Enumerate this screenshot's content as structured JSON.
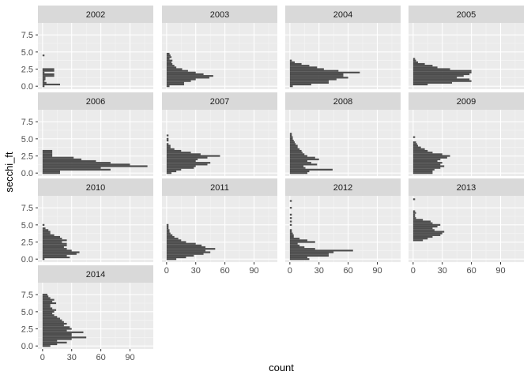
{
  "chart_data": {
    "type": "bar",
    "orientation": "horizontal",
    "xlabel": "count",
    "ylabel": "secchi_ft",
    "xlim": [
      -4.75,
      114
    ],
    "ylim": [
      -0.44,
      9.25
    ],
    "x_ticks": [
      "0",
      "30",
      "60",
      "90"
    ],
    "y_ticks": [
      "0.0",
      "2.5",
      "5.0",
      "7.5"
    ],
    "bin_width": 0.25,
    "grid": true,
    "legend": "none",
    "colors": {
      "bar": "#4d4d4d",
      "panel": "#ebebeb",
      "strip": "#d9d9d9",
      "grid_major": "#ffffff",
      "grid_minor": "#f5f5f5"
    },
    "facets": [
      {
        "title": "2002",
        "bins": [
          [
            0.0,
            2
          ],
          [
            0.25,
            18
          ],
          [
            0.5,
            4
          ],
          [
            0.75,
            2
          ],
          [
            1.0,
            3
          ],
          [
            1.25,
            3
          ],
          [
            1.5,
            12
          ],
          [
            1.75,
            12
          ],
          [
            2.0,
            2
          ],
          [
            2.25,
            12
          ],
          [
            2.5,
            12
          ],
          [
            4.5,
            2
          ]
        ]
      },
      {
        "title": "2003",
        "bins": [
          [
            0.0,
            3
          ],
          [
            0.25,
            18
          ],
          [
            0.5,
            18
          ],
          [
            0.75,
            25
          ],
          [
            1.0,
            30
          ],
          [
            1.25,
            44
          ],
          [
            1.5,
            48
          ],
          [
            1.75,
            38
          ],
          [
            2.0,
            30
          ],
          [
            2.25,
            22
          ],
          [
            2.5,
            16
          ],
          [
            2.75,
            10
          ],
          [
            3.0,
            8
          ],
          [
            3.25,
            6
          ],
          [
            3.5,
            5
          ],
          [
            3.75,
            6
          ],
          [
            4.0,
            3
          ],
          [
            4.25,
            5
          ],
          [
            4.5,
            4
          ],
          [
            4.75,
            3
          ]
        ]
      },
      {
        "title": "2004",
        "bins": [
          [
            0.0,
            3
          ],
          [
            0.25,
            22
          ],
          [
            0.5,
            40
          ],
          [
            0.75,
            40
          ],
          [
            1.0,
            48
          ],
          [
            1.25,
            60
          ],
          [
            1.5,
            55
          ],
          [
            1.75,
            55
          ],
          [
            2.0,
            72
          ],
          [
            2.25,
            50
          ],
          [
            2.5,
            35
          ],
          [
            2.75,
            28
          ],
          [
            3.0,
            20
          ],
          [
            3.25,
            12
          ],
          [
            3.5,
            5
          ],
          [
            3.75,
            2
          ]
        ]
      },
      {
        "title": "2005",
        "bins": [
          [
            0.25,
            15
          ],
          [
            0.5,
            40
          ],
          [
            0.75,
            60
          ],
          [
            1.0,
            58
          ],
          [
            1.25,
            45
          ],
          [
            1.5,
            52
          ],
          [
            1.75,
            58
          ],
          [
            2.0,
            60
          ],
          [
            2.25,
            60
          ],
          [
            2.5,
            38
          ],
          [
            2.75,
            25
          ],
          [
            3.0,
            20
          ],
          [
            3.25,
            12
          ],
          [
            3.5,
            5
          ],
          [
            3.75,
            3
          ],
          [
            4.0,
            2
          ]
        ]
      },
      {
        "title": "2006",
        "bins": [
          [
            0.0,
            18
          ],
          [
            0.25,
            18
          ],
          [
            0.5,
            70
          ],
          [
            0.75,
            60
          ],
          [
            1.0,
            108
          ],
          [
            1.25,
            90
          ],
          [
            1.5,
            70
          ],
          [
            1.75,
            55
          ],
          [
            2.0,
            40
          ],
          [
            2.25,
            32
          ],
          [
            2.5,
            10
          ],
          [
            2.75,
            10
          ],
          [
            3.0,
            10
          ],
          [
            3.25,
            10
          ]
        ]
      },
      {
        "title": "2007",
        "bins": [
          [
            0.0,
            5
          ],
          [
            0.25,
            10
          ],
          [
            0.5,
            15
          ],
          [
            0.75,
            28
          ],
          [
            1.0,
            30
          ],
          [
            1.25,
            42
          ],
          [
            1.5,
            45
          ],
          [
            1.75,
            30
          ],
          [
            2.0,
            32
          ],
          [
            2.25,
            42
          ],
          [
            2.5,
            55
          ],
          [
            2.75,
            35
          ],
          [
            3.0,
            25
          ],
          [
            3.25,
            15
          ],
          [
            3.5,
            8
          ],
          [
            3.75,
            4
          ],
          [
            4.0,
            4
          ],
          [
            4.25,
            2
          ],
          [
            4.75,
            2
          ],
          [
            5.0,
            2
          ],
          [
            5.5,
            2
          ]
        ]
      },
      {
        "title": "2008",
        "bins": [
          [
            0.0,
            18
          ],
          [
            0.25,
            20
          ],
          [
            0.5,
            44
          ],
          [
            0.75,
            16
          ],
          [
            1.0,
            14
          ],
          [
            1.25,
            28
          ],
          [
            1.5,
            22
          ],
          [
            1.75,
            18
          ],
          [
            2.0,
            30
          ],
          [
            2.25,
            26
          ],
          [
            2.5,
            18
          ],
          [
            2.75,
            15
          ],
          [
            3.0,
            13
          ],
          [
            3.25,
            12
          ],
          [
            3.5,
            10
          ],
          [
            3.75,
            8
          ],
          [
            4.0,
            8
          ],
          [
            4.25,
            6
          ],
          [
            4.5,
            5
          ],
          [
            4.75,
            4
          ],
          [
            5.0,
            3
          ],
          [
            5.25,
            3
          ],
          [
            5.5,
            2
          ],
          [
            5.75,
            2
          ]
        ]
      },
      {
        "title": "2009",
        "bins": [
          [
            0.0,
            20
          ],
          [
            0.25,
            20
          ],
          [
            0.5,
            22
          ],
          [
            0.75,
            28
          ],
          [
            1.0,
            32
          ],
          [
            1.25,
            28
          ],
          [
            1.5,
            30
          ],
          [
            1.75,
            25
          ],
          [
            2.0,
            28
          ],
          [
            2.25,
            35
          ],
          [
            2.5,
            38
          ],
          [
            2.75,
            30
          ],
          [
            3.0,
            20
          ],
          [
            3.25,
            15
          ],
          [
            3.5,
            12
          ],
          [
            3.75,
            8
          ],
          [
            4.0,
            5
          ],
          [
            4.25,
            4
          ],
          [
            4.5,
            3
          ],
          [
            5.25,
            2
          ]
        ]
      },
      {
        "title": "2010",
        "bins": [
          [
            0.0,
            2
          ],
          [
            0.25,
            28
          ],
          [
            0.5,
            25
          ],
          [
            0.75,
            35
          ],
          [
            1.0,
            38
          ],
          [
            1.25,
            30
          ],
          [
            1.5,
            25
          ],
          [
            1.75,
            22
          ],
          [
            2.0,
            25
          ],
          [
            2.25,
            25
          ],
          [
            2.5,
            20
          ],
          [
            2.75,
            25
          ],
          [
            3.0,
            20
          ],
          [
            3.25,
            18
          ],
          [
            3.5,
            12
          ],
          [
            3.75,
            8
          ],
          [
            4.0,
            8
          ],
          [
            4.25,
            6
          ],
          [
            4.5,
            3
          ],
          [
            5.0,
            2
          ]
        ]
      },
      {
        "title": "2011",
        "bins": [
          [
            0.0,
            10
          ],
          [
            0.25,
            20
          ],
          [
            0.5,
            28
          ],
          [
            0.75,
            38
          ],
          [
            1.0,
            45
          ],
          [
            1.25,
            40
          ],
          [
            1.5,
            50
          ],
          [
            1.75,
            40
          ],
          [
            2.0,
            36
          ],
          [
            2.25,
            30
          ],
          [
            2.5,
            20
          ],
          [
            2.75,
            15
          ],
          [
            3.0,
            12
          ],
          [
            3.25,
            8
          ],
          [
            3.5,
            6
          ],
          [
            3.75,
            4
          ],
          [
            4.0,
            3
          ],
          [
            4.25,
            3
          ],
          [
            4.5,
            2
          ],
          [
            4.75,
            2
          ],
          [
            5.0,
            2
          ]
        ]
      },
      {
        "title": "2012",
        "bins": [
          [
            0.0,
            20
          ],
          [
            0.25,
            18
          ],
          [
            0.5,
            40
          ],
          [
            0.75,
            40
          ],
          [
            1.0,
            45
          ],
          [
            1.25,
            65
          ],
          [
            1.5,
            26
          ],
          [
            1.75,
            15
          ],
          [
            2.0,
            10
          ],
          [
            2.25,
            8
          ],
          [
            2.5,
            26
          ],
          [
            2.75,
            18
          ],
          [
            3.0,
            10
          ],
          [
            3.25,
            4
          ],
          [
            3.5,
            4
          ],
          [
            3.75,
            3
          ],
          [
            4.0,
            2
          ],
          [
            4.25,
            2
          ],
          [
            5.0,
            2
          ],
          [
            5.5,
            2
          ],
          [
            6.0,
            2
          ],
          [
            6.5,
            2
          ],
          [
            7.5,
            2
          ],
          [
            8.5,
            2
          ]
        ]
      },
      {
        "title": "2013",
        "bins": [
          [
            2.75,
            10
          ],
          [
            3.0,
            15
          ],
          [
            3.25,
            20
          ],
          [
            3.5,
            28
          ],
          [
            3.75,
            30
          ],
          [
            4.0,
            32
          ],
          [
            4.25,
            22
          ],
          [
            4.5,
            20
          ],
          [
            4.75,
            25
          ],
          [
            5.0,
            28
          ],
          [
            5.25,
            20
          ],
          [
            5.5,
            18
          ],
          [
            5.75,
            10
          ],
          [
            6.0,
            3
          ],
          [
            6.25,
            2
          ],
          [
            6.5,
            2
          ],
          [
            6.75,
            3
          ],
          [
            7.0,
            2
          ],
          [
            8.75,
            2
          ]
        ]
      },
      {
        "title": "2014",
        "bins": [
          [
            0.0,
            8
          ],
          [
            0.25,
            15
          ],
          [
            0.5,
            25
          ],
          [
            0.75,
            15
          ],
          [
            1.0,
            30
          ],
          [
            1.25,
            45
          ],
          [
            1.5,
            30
          ],
          [
            1.75,
            30
          ],
          [
            2.0,
            42
          ],
          [
            2.25,
            25
          ],
          [
            2.5,
            30
          ],
          [
            2.75,
            28
          ],
          [
            3.0,
            22
          ],
          [
            3.25,
            25
          ],
          [
            3.5,
            22
          ],
          [
            3.75,
            20
          ],
          [
            4.0,
            18
          ],
          [
            4.25,
            15
          ],
          [
            4.5,
            12
          ],
          [
            4.75,
            10
          ],
          [
            5.0,
            12
          ],
          [
            5.25,
            14
          ],
          [
            5.5,
            10
          ],
          [
            5.75,
            8
          ],
          [
            6.0,
            8
          ],
          [
            6.25,
            14
          ],
          [
            6.5,
            10
          ],
          [
            6.75,
            12
          ],
          [
            7.0,
            8
          ],
          [
            7.25,
            6
          ],
          [
            7.5,
            5
          ]
        ]
      }
    ]
  }
}
